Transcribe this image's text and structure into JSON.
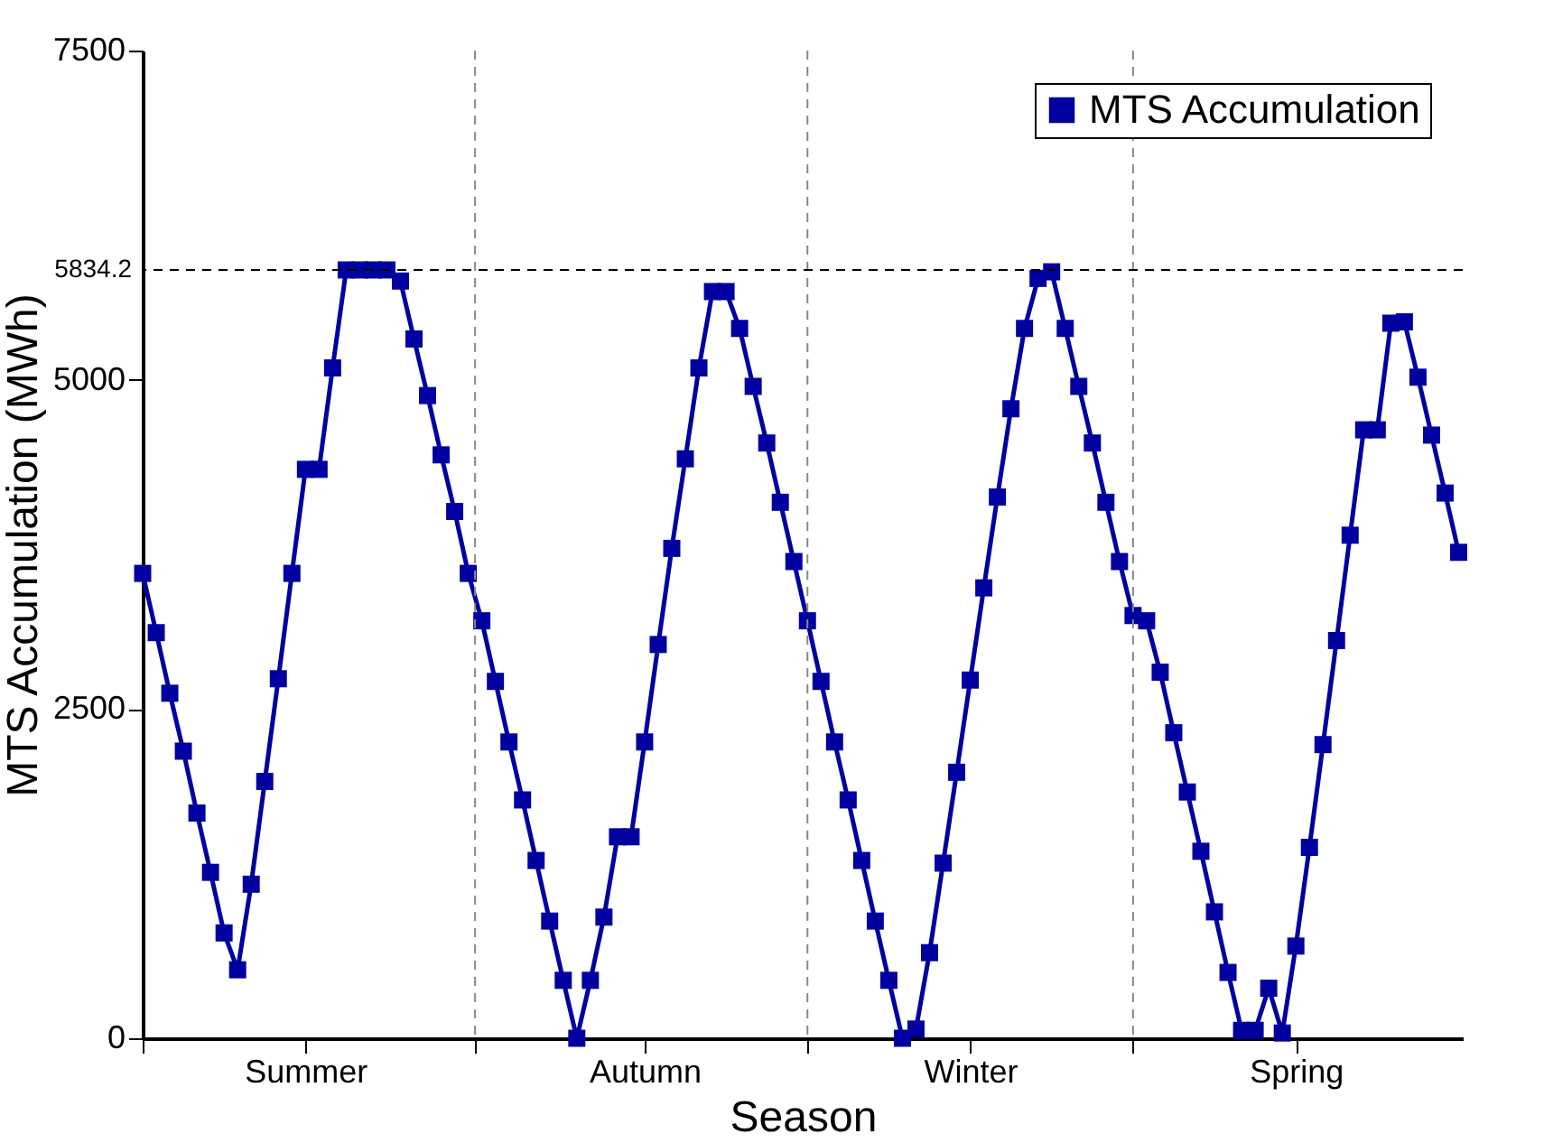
{
  "chart_data": {
    "type": "line",
    "xlabel": "Season",
    "ylabel": "MTS Accumulation (MWh)",
    "categories": [
      null,
      null,
      null,
      null,
      null,
      null,
      null,
      null,
      null,
      null,
      null,
      null,
      "Summer",
      null,
      null,
      null,
      null,
      null,
      null,
      null,
      null,
      null,
      null,
      null,
      null,
      null,
      null,
      null,
      null,
      null,
      null,
      null,
      null,
      null,
      null,
      null,
      null,
      "Autumn",
      null,
      null,
      null,
      null,
      null,
      null,
      null,
      null,
      null,
      null,
      null,
      null,
      null,
      null,
      null,
      null,
      null,
      null,
      null,
      null,
      null,
      null,
      null,
      "Winter",
      null,
      null,
      null,
      null,
      null,
      null,
      null,
      null,
      null,
      null,
      null,
      null,
      null,
      null,
      null,
      null,
      null,
      null,
      null,
      null,
      null,
      null,
      null,
      "Spring",
      null,
      null,
      null,
      null,
      null,
      null,
      null,
      null,
      null,
      null,
      null,
      null
    ],
    "series": [
      {
        "name": "MTS Accumulation",
        "color": "#0000a0",
        "marker": "square",
        "line_style": "solid",
        "values": [
          3530,
          3080,
          2620,
          2180,
          1710,
          1260,
          800,
          520,
          1170,
          1950,
          2730,
          3530,
          4320,
          4320,
          5090,
          5834.2,
          5834.2,
          5834.2,
          5834.2,
          5750,
          5310,
          4880,
          4430,
          4000,
          3530,
          3170,
          2710,
          2250,
          1810,
          1350,
          890,
          440,
          0,
          440,
          920,
          1530,
          1530,
          2250,
          2990,
          3720,
          4400,
          5090,
          5670,
          5670,
          5390,
          4950,
          4520,
          4070,
          3620,
          3170,
          2710,
          2250,
          1810,
          1350,
          890,
          440,
          0,
          70,
          650,
          1330,
          2020,
          2720,
          3420,
          4110,
          4780,
          5390,
          5770,
          5820,
          5390,
          4950,
          4520,
          4070,
          3620,
          3210,
          3170,
          2780,
          2320,
          1870,
          1420,
          960,
          500,
          60,
          60,
          380,
          40,
          700,
          1450,
          2230,
          3020,
          3820,
          4620,
          4620,
          5430,
          5440,
          5020,
          4580,
          4140,
          3690
        ]
      }
    ],
    "ylim": [
      0,
      7500
    ],
    "yticks": [
      0,
      2500,
      5000,
      7500
    ],
    "ref_lines": [
      {
        "axis": "y",
        "value": 5834.2,
        "label": "5834.2",
        "color": "#000000",
        "line_style": "dashed"
      }
    ],
    "grid": "x",
    "legend": "top right"
  }
}
